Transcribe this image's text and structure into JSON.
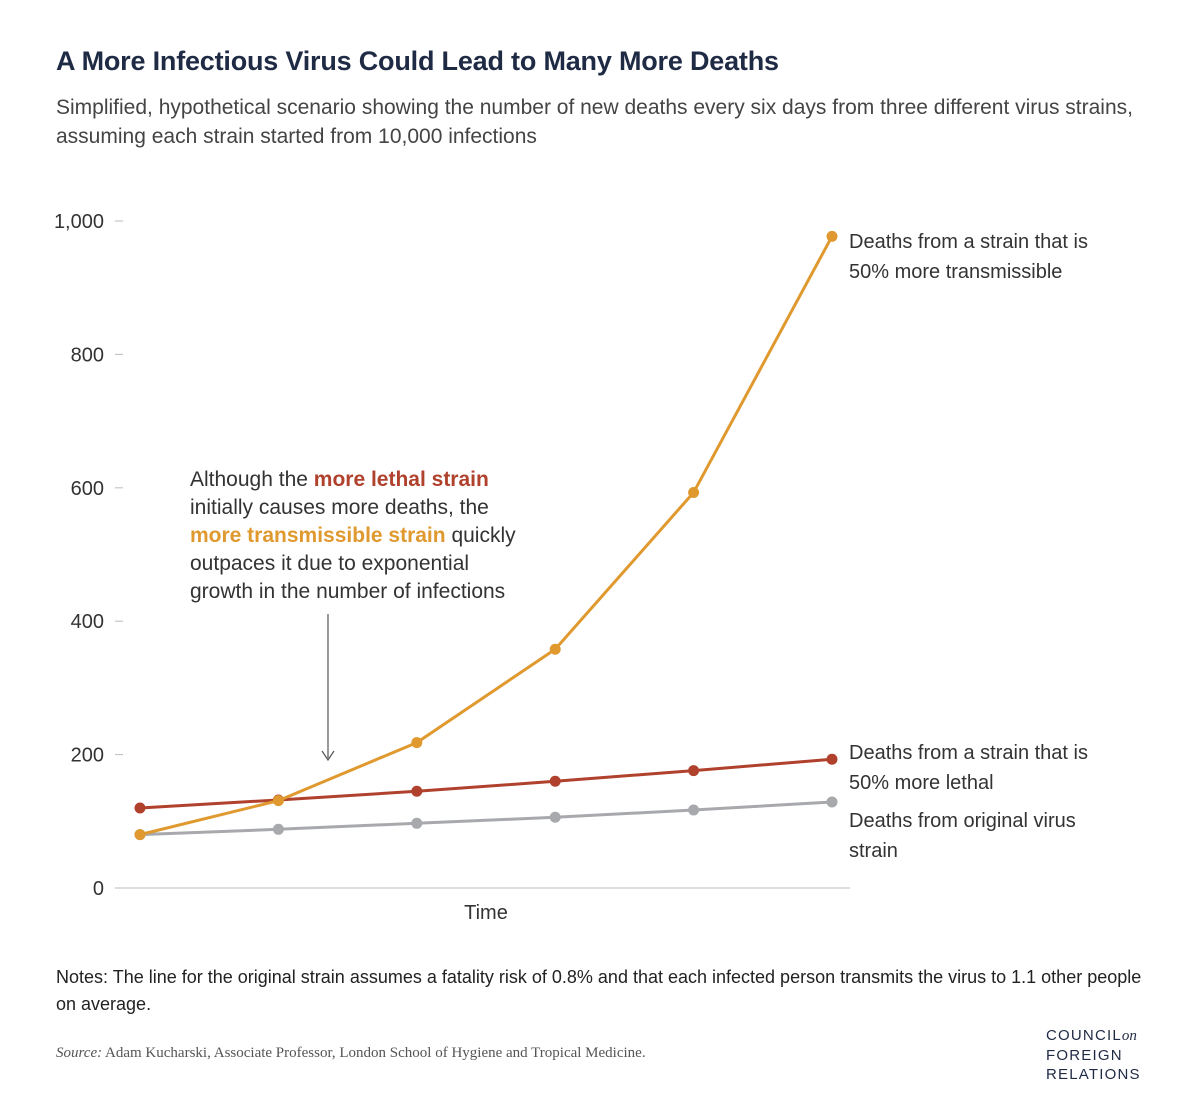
{
  "header": {
    "title": "A More Infectious Virus Could Lead to Many More Deaths",
    "subtitle": "Simplified, hypothetical scenario showing the number of new deaths every six days from three different virus strains, assuming each strain started from 10,000 infections"
  },
  "chart_data": {
    "type": "line",
    "xlabel": "Time",
    "ylabel": "",
    "ylim": [
      0,
      1000
    ],
    "yticks": [
      0,
      200,
      400,
      600,
      800,
      1000
    ],
    "ytick_labels": [
      "0",
      "200",
      "400",
      "600",
      "800",
      "1,000"
    ],
    "x": [
      1,
      2,
      3,
      4,
      5,
      6
    ],
    "grid": false,
    "series": [
      {
        "name": "Deaths from a strain that is 50% more transmissible",
        "label_lines": [
          "Deaths from a strain that is",
          "50% more transmissible"
        ],
        "color": "#e0992e",
        "values": [
          80,
          131,
          218,
          358,
          593,
          977
        ]
      },
      {
        "name": "Deaths from a strain that is 50% more lethal",
        "label_lines": [
          "Deaths from a strain that is",
          "50% more lethal"
        ],
        "color": "#b0412d",
        "values": [
          120,
          132,
          145,
          160,
          176,
          193
        ]
      },
      {
        "name": "Deaths from original virus strain",
        "label_lines": [
          "Deaths from original virus",
          "strain"
        ],
        "color": "#a7a9ac",
        "values": [
          80,
          88,
          97,
          106,
          117,
          129
        ]
      }
    ],
    "annotation": {
      "line1_a": "Although the ",
      "line1_b": "more lethal strain",
      "line2": "initially causes more deaths, the",
      "line3_a": "more transmissible strain",
      "line3_b": " quickly",
      "line4": "outpaces it due to exponential",
      "line5": "growth in the number of infections"
    }
  },
  "footer": {
    "notes": "Notes: The line for the original strain assumes a fatality risk of 0.8% and that each infected person transmits the virus to 1.1 other people on average.",
    "source_label": "Source:",
    "source_text": " Adam Kucharski, Associate Professor, London School of Hygiene and Tropical Medicine.",
    "logo": {
      "line1": "COUNCIL",
      "line1_small": "on",
      "line2": "FOREIGN",
      "line3": "RELATIONS"
    }
  }
}
